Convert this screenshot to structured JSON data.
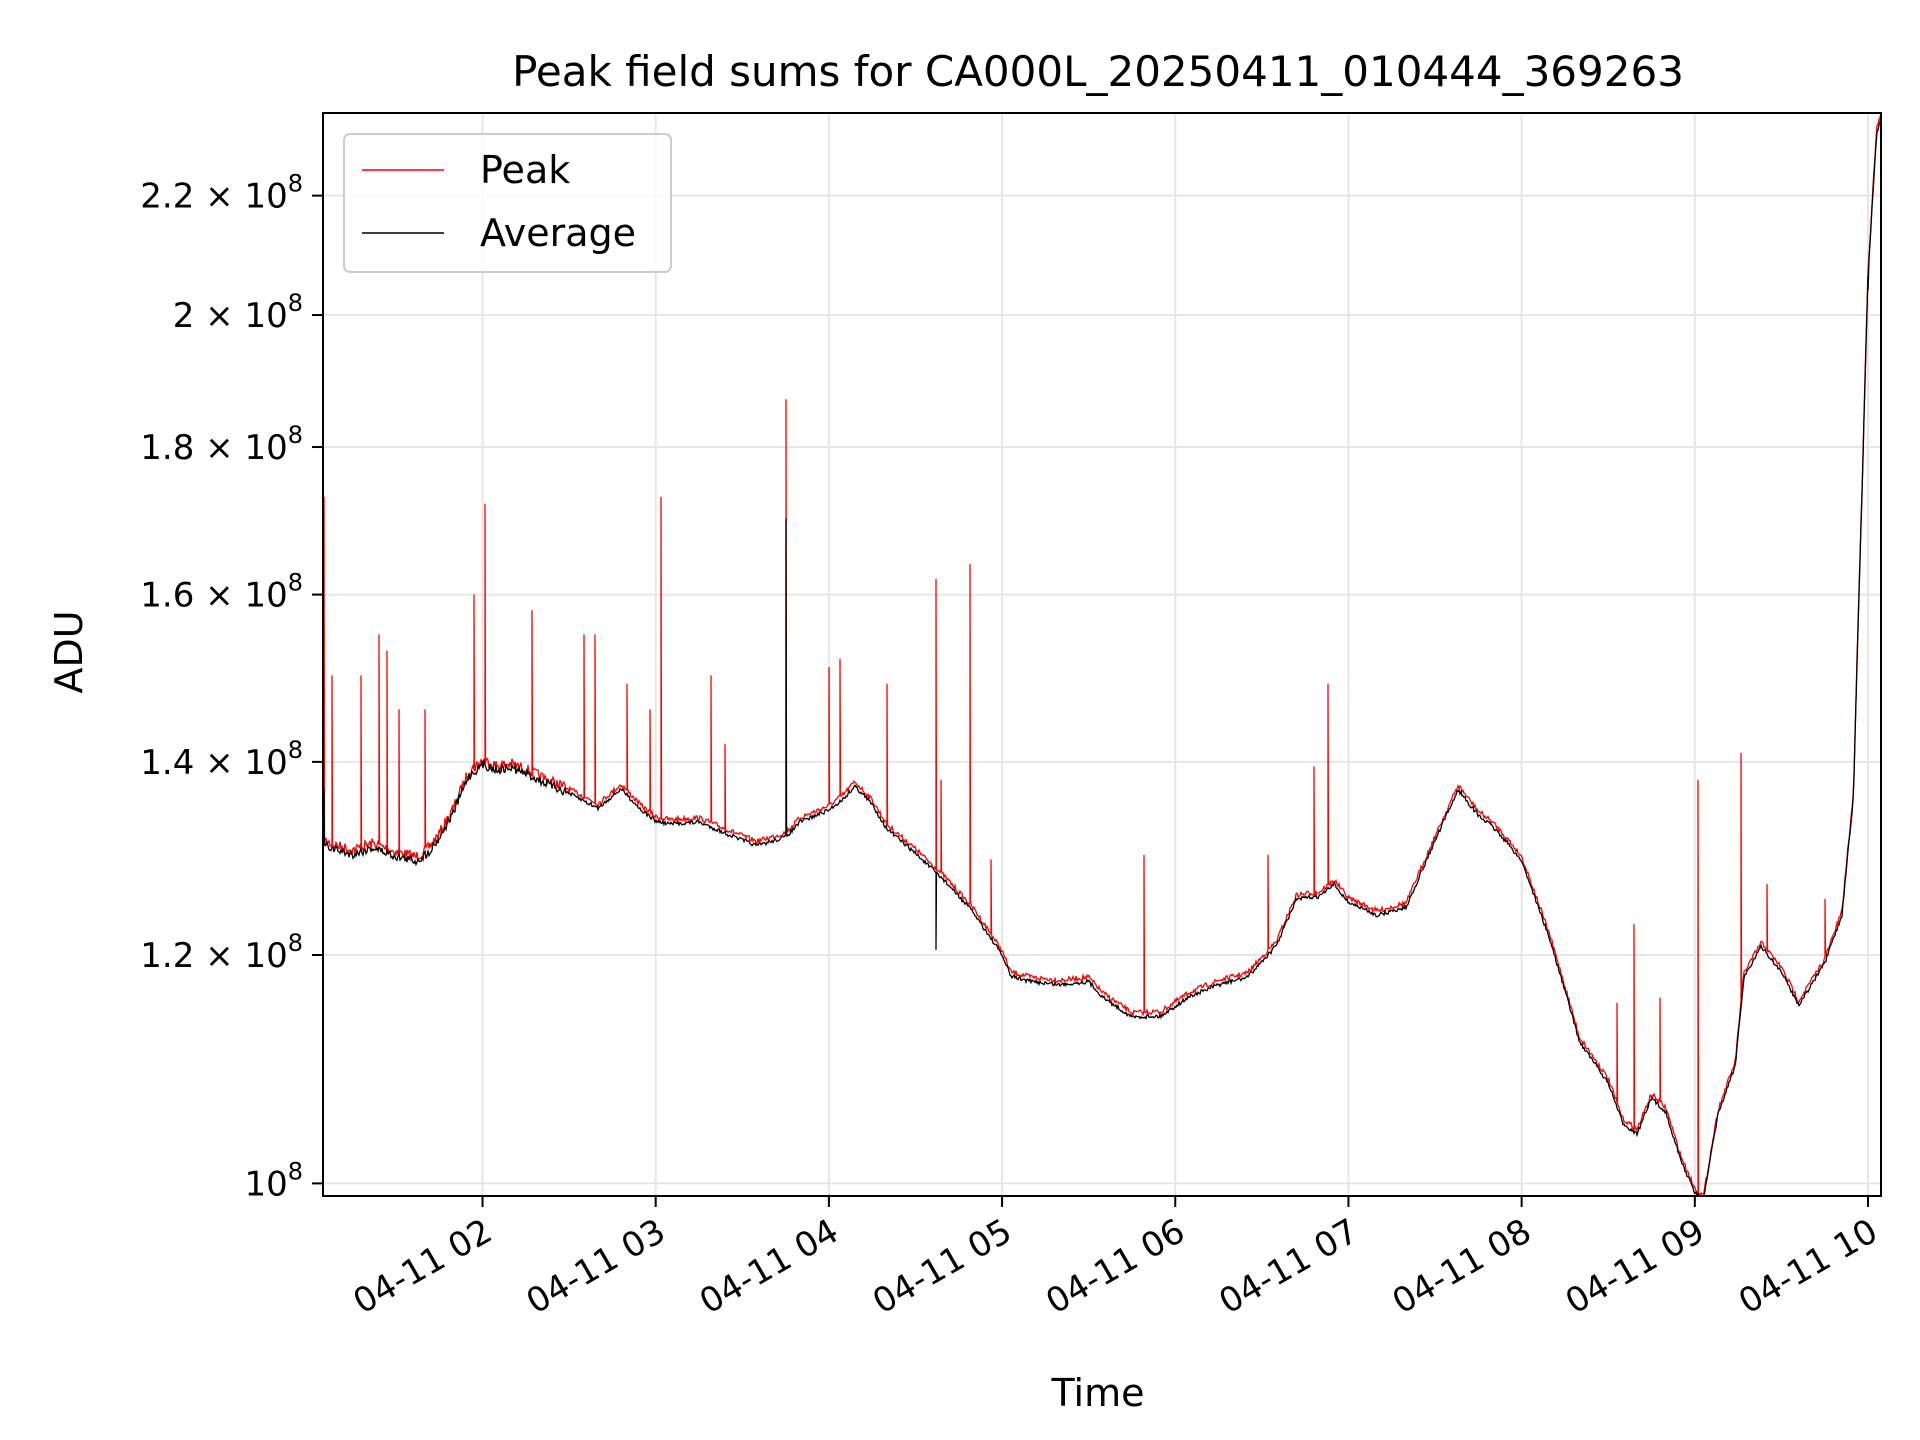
{
  "chart_data": {
    "type": "line",
    "title": "Peak field sums for CA000L_20250411_010444_369263",
    "xlabel": "Time",
    "ylabel": "ADU",
    "yscale": "log",
    "ylim": [
      99000000,
      235000000
    ],
    "xlim": [
      "2025-04-11T01:04:44",
      "2025-04-11T10:04:30"
    ],
    "grid": true,
    "legend_location": "top-left",
    "x_ticks": [
      {
        "t": "2025-04-11T02:00",
        "label": "04-11 02"
      },
      {
        "t": "2025-04-11T03:00",
        "label": "04-11 03"
      },
      {
        "t": "2025-04-11T04:00",
        "label": "04-11 04"
      },
      {
        "t": "2025-04-11T05:00",
        "label": "04-11 05"
      },
      {
        "t": "2025-04-11T06:00",
        "label": "04-11 06"
      },
      {
        "t": "2025-04-11T07:00",
        "label": "04-11 07"
      },
      {
        "t": "2025-04-11T08:00",
        "label": "04-11 08"
      },
      {
        "t": "2025-04-11T09:00",
        "label": "04-11 09"
      },
      {
        "t": "2025-04-11T10:00",
        "label": "04-11 10"
      }
    ],
    "y_ticks": [
      {
        "v": 100000000,
        "mant": "",
        "base": "10",
        "exp": "8"
      },
      {
        "v": 120000000,
        "mant": "1.2 × ",
        "base": "10",
        "exp": "8"
      },
      {
        "v": 140000000,
        "mant": "1.4 × ",
        "base": "10",
        "exp": "8"
      },
      {
        "v": 160000000,
        "mant": "1.6 × ",
        "base": "10",
        "exp": "8"
      },
      {
        "v": 180000000,
        "mant": "1.8 × ",
        "base": "10",
        "exp": "8"
      },
      {
        "v": 200000000,
        "mant": "2 × ",
        "base": "10",
        "exp": "8"
      },
      {
        "v": 220000000,
        "mant": "2.2 × ",
        "base": "10",
        "exp": "8"
      }
    ],
    "series": [
      {
        "name": "Peak",
        "color": "#ff0000",
        "baseline": [
          [
            "2025-04-11T01:04:44",
            131500000
          ],
          [
            "2025-04-11T01:09",
            131000000
          ],
          [
            "2025-04-11T01:15",
            130500000
          ],
          [
            "2025-04-11T01:22",
            131200000
          ],
          [
            "2025-04-11T01:30",
            130300000
          ],
          [
            "2025-04-11T01:37",
            129800000
          ],
          [
            "2025-04-11T01:41",
            130600000
          ],
          [
            "2025-04-11T01:45",
            132200000
          ],
          [
            "2025-04-11T01:50",
            135000000
          ],
          [
            "2025-04-11T01:55",
            138800000
          ],
          [
            "2025-04-11T02:00",
            140200000
          ],
          [
            "2025-04-11T02:05",
            139600000
          ],
          [
            "2025-04-11T02:10",
            139800000
          ],
          [
            "2025-04-11T02:15",
            139200000
          ],
          [
            "2025-04-11T02:20",
            138400000
          ],
          [
            "2025-04-11T02:30",
            137000000
          ],
          [
            "2025-04-11T02:40",
            135400000
          ],
          [
            "2025-04-11T02:48",
            137500000
          ],
          [
            "2025-04-11T02:55",
            135200000
          ],
          [
            "2025-04-11T03:00",
            134000000
          ],
          [
            "2025-04-11T03:05",
            133700000
          ],
          [
            "2025-04-11T03:15",
            133900000
          ],
          [
            "2025-04-11T03:25",
            132600000
          ],
          [
            "2025-04-11T03:35",
            131400000
          ],
          [
            "2025-04-11T03:45",
            132300000
          ],
          [
            "2025-04-11T03:50",
            133900000
          ],
          [
            "2025-04-11T04:00",
            135200000
          ],
          [
            "2025-04-11T04:05",
            136400000
          ],
          [
            "2025-04-11T04:09",
            137800000
          ],
          [
            "2025-04-11T04:15",
            135800000
          ],
          [
            "2025-04-11T04:20",
            133200000
          ],
          [
            "2025-04-11T04:30",
            130600000
          ],
          [
            "2025-04-11T04:40",
            127800000
          ],
          [
            "2025-04-11T04:50",
            124600000
          ],
          [
            "2025-04-11T05:00",
            120400000
          ],
          [
            "2025-04-11T05:03",
            118400000
          ],
          [
            "2025-04-11T05:10",
            117900000
          ],
          [
            "2025-04-11T05:20",
            117600000
          ],
          [
            "2025-04-11T05:30",
            117900000
          ],
          [
            "2025-04-11T05:35",
            116400000
          ],
          [
            "2025-04-11T05:45",
            114600000
          ],
          [
            "2025-04-11T05:55",
            114700000
          ],
          [
            "2025-04-11T06:05",
            116500000
          ],
          [
            "2025-04-11T06:15",
            117600000
          ],
          [
            "2025-04-11T06:25",
            118300000
          ],
          [
            "2025-04-11T06:35",
            121300000
          ],
          [
            "2025-04-11T06:42",
            125900000
          ],
          [
            "2025-04-11T06:50",
            126200000
          ],
          [
            "2025-04-11T06:55",
            127400000
          ],
          [
            "2025-04-11T07:00",
            125600000
          ],
          [
            "2025-04-11T07:10",
            124300000
          ],
          [
            "2025-04-11T07:20",
            125100000
          ],
          [
            "2025-04-11T07:30",
            131900000
          ],
          [
            "2025-04-11T07:38",
            137400000
          ],
          [
            "2025-04-11T07:45",
            134600000
          ],
          [
            "2025-04-11T07:50",
            133400000
          ],
          [
            "2025-04-11T07:55",
            131700000
          ],
          [
            "2025-04-11T08:00",
            129800000
          ],
          [
            "2025-04-11T08:10",
            121700000
          ],
          [
            "2025-04-11T08:20",
            112400000
          ],
          [
            "2025-04-11T08:30",
            108700000
          ],
          [
            "2025-04-11T08:35",
            105300000
          ],
          [
            "2025-04-11T08:40",
            104400000
          ],
          [
            "2025-04-11T08:45",
            107400000
          ],
          [
            "2025-04-11T08:50",
            106200000
          ],
          [
            "2025-04-11T08:55",
            102300000
          ],
          [
            "2025-04-11T09:00",
            99600000
          ],
          [
            "2025-04-11T09:03",
            99000000
          ],
          [
            "2025-04-11T09:08",
            106000000
          ],
          [
            "2025-04-11T09:14",
            110200000
          ],
          [
            "2025-04-11T09:17",
            118300000
          ],
          [
            "2025-04-11T09:23",
            121200000
          ],
          [
            "2025-04-11T09:30",
            118800000
          ],
          [
            "2025-04-11T09:36",
            115700000
          ],
          [
            "2025-04-11T09:45",
            119600000
          ],
          [
            "2025-04-11T09:51",
            124300000
          ],
          [
            "2025-04-11T09:55",
            136700000
          ],
          [
            "2025-04-11T09:58",
            175000000
          ],
          [
            "2025-04-11T10:00",
            207000000
          ],
          [
            "2025-04-11T10:03",
            232000000
          ],
          [
            "2025-04-11T10:04:30",
            235000000
          ]
        ],
        "spikes": [
          [
            "2025-04-11T01:05",
            173000000
          ],
          [
            "2025-04-11T01:08",
            150000000
          ],
          [
            "2025-04-11T01:18",
            150000000
          ],
          [
            "2025-04-11T01:24",
            155000000
          ],
          [
            "2025-04-11T01:27",
            153000000
          ],
          [
            "2025-04-11T01:31",
            146000000
          ],
          [
            "2025-04-11T01:40",
            146000000
          ],
          [
            "2025-04-11T01:57",
            160000000
          ],
          [
            "2025-04-11T02:01",
            172000000
          ],
          [
            "2025-04-11T02:17",
            158000000
          ],
          [
            "2025-04-11T02:35",
            155000000
          ],
          [
            "2025-04-11T02:39",
            155000000
          ],
          [
            "2025-04-11T02:50",
            149000000
          ],
          [
            "2025-04-11T02:58",
            146000000
          ],
          [
            "2025-04-11T03:02",
            173000000
          ],
          [
            "2025-04-11T03:19",
            150000000
          ],
          [
            "2025-04-11T03:24",
            142000000
          ],
          [
            "2025-04-11T03:45",
            187000000
          ],
          [
            "2025-04-11T04:00",
            151000000
          ],
          [
            "2025-04-11T04:04",
            152000000
          ],
          [
            "2025-04-11T04:20",
            149000000
          ],
          [
            "2025-04-11T04:37",
            162000000
          ],
          [
            "2025-04-11T04:39",
            138000000
          ],
          [
            "2025-04-11T04:49",
            164000000
          ],
          [
            "2025-04-11T04:56",
            129500000
          ],
          [
            "2025-04-11T05:49",
            130000000
          ],
          [
            "2025-04-11T06:32",
            130000000
          ],
          [
            "2025-04-11T06:48",
            139500000
          ],
          [
            "2025-04-11T06:53",
            149000000
          ],
          [
            "2025-04-11T08:33",
            115500000
          ],
          [
            "2025-04-11T08:39",
            123000000
          ],
          [
            "2025-04-11T08:48",
            116000000
          ],
          [
            "2025-04-11T09:01",
            138000000
          ],
          [
            "2025-04-11T09:16",
            141000000
          ],
          [
            "2025-04-11T09:25",
            127000000
          ],
          [
            "2025-04-11T09:45",
            125500000
          ]
        ]
      },
      {
        "name": "Average",
        "color": "#000000",
        "baseline": "same as Peak, approx. 0.35% lower",
        "spikes": [
          [
            "2025-04-11T01:05",
            137000000
          ],
          [
            "2025-04-11T03:45",
            170000000
          ],
          [
            "2025-04-11T04:37",
            120500000
          ],
          [
            "2025-04-11T10:00",
            204000000
          ]
        ]
      }
    ]
  }
}
